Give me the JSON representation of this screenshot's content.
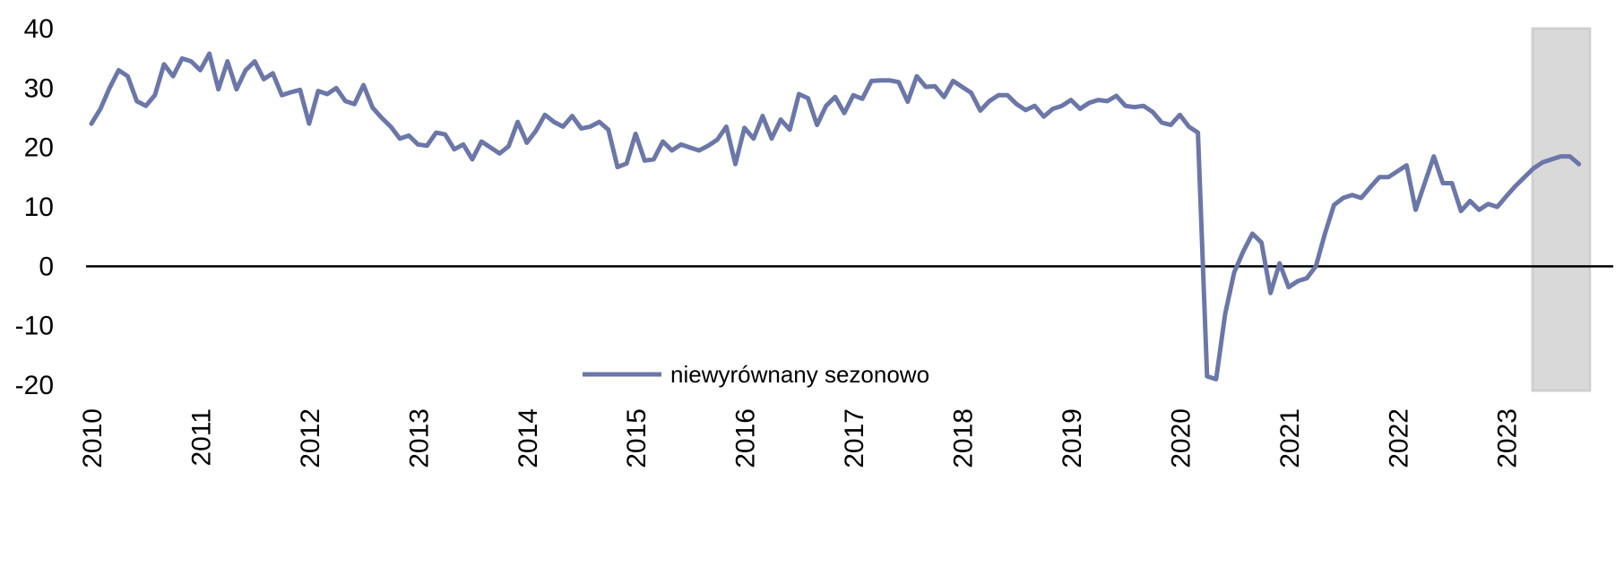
{
  "chart_data": {
    "type": "line",
    "title": "",
    "xlabel": "",
    "ylabel": "",
    "ylim": [
      -20,
      40
    ],
    "y_ticks": [
      "40",
      "30",
      "20",
      "10",
      "0",
      "-10",
      "-20"
    ],
    "x_ticks": [
      "2010",
      "2011",
      "2012",
      "2013",
      "2014",
      "2015",
      "2016",
      "2017",
      "2018",
      "2019",
      "2020",
      "2021",
      "2022",
      "2023"
    ],
    "grid": false,
    "zero_line": true,
    "legend_position": "bottom-center",
    "highlight_range": {
      "from": "2023-04",
      "to": "2023-10"
    },
    "colors": {
      "series": "#6b77a8",
      "zero_line": "#000000",
      "highlight": "#d9d9d9"
    },
    "series": [
      {
        "name": "niewyrównany sezonowo",
        "start": "2010-01",
        "frequency": "monthly",
        "values": [
          24.0,
          26.5,
          30.0,
          33.0,
          32.0,
          27.8,
          27.0,
          28.8,
          34.0,
          32.0,
          35.0,
          34.5,
          33.0,
          35.8,
          29.8,
          34.5,
          29.8,
          33.0,
          34.5,
          31.5,
          32.5,
          28.8,
          29.3,
          29.7,
          24.0,
          29.5,
          29.0,
          30.0,
          27.8,
          27.3,
          30.5,
          26.7,
          25.0,
          23.5,
          21.5,
          22.0,
          20.5,
          20.3,
          22.5,
          22.2,
          19.7,
          20.5,
          18.0,
          21.0,
          20.0,
          19.0,
          20.2,
          24.3,
          20.8,
          22.8,
          25.5,
          24.3,
          23.5,
          25.3,
          23.2,
          23.5,
          24.3,
          23.0,
          16.7,
          17.3,
          22.3,
          17.8,
          18.0,
          21.0,
          19.5,
          20.5,
          20.0,
          19.5,
          20.3,
          21.3,
          23.5,
          17.2,
          23.3,
          21.5,
          25.3,
          21.5,
          24.7,
          23.0,
          29.0,
          28.3,
          23.8,
          27.0,
          28.5,
          25.8,
          28.8,
          28.2,
          31.2,
          31.3,
          31.3,
          31.0,
          27.7,
          32.0,
          30.2,
          30.3,
          28.5,
          31.2,
          30.2,
          29.2,
          26.2,
          27.8,
          28.8,
          28.8,
          27.3,
          26.3,
          27.0,
          25.2,
          26.5,
          27.0,
          28.0,
          26.5,
          27.5,
          28.0,
          27.8,
          28.7,
          27.0,
          26.8,
          27.0,
          26.0,
          24.2,
          23.8,
          25.5,
          23.5,
          22.5,
          -18.5,
          -19.0,
          -8.0,
          -1.0,
          2.5,
          5.5,
          4.0,
          -4.5,
          0.5,
          -3.5,
          -2.5,
          -2.0,
          0.0,
          5.5,
          10.3,
          11.5,
          12.0,
          11.5,
          13.3,
          15.0,
          15.0,
          16.0,
          17.0,
          9.5,
          14.0,
          18.5,
          14.0,
          14.0,
          9.3,
          11.0,
          9.5,
          10.5,
          10.0,
          11.8,
          13.5,
          15.0,
          16.5,
          17.5,
          18.0,
          18.5,
          18.5,
          17.2
        ]
      }
    ]
  }
}
